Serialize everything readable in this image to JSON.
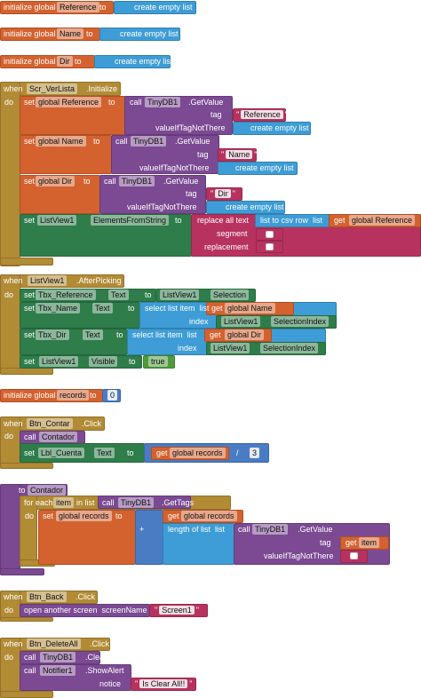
{
  "blocks": [
    [
      "initialize global",
      "Reference",
      "to",
      "create empty list"
    ],
    [
      "initialize global",
      "Name",
      "to",
      "create empty list"
    ],
    [
      "initialize global",
      "Dir",
      "to",
      "create empty list"
    ],
    [
      "when",
      "Scr_VerLista",
      ".Initialize",
      "do",
      "set",
      "global Reference",
      "to",
      "call",
      "TinyDB1",
      ".GetValue",
      "tag",
      "valueIfTagNotThere",
      "Reference",
      "create empty list",
      "set",
      "global Name",
      "to",
      "call",
      "TinyDB1",
      ".GetValue",
      "tag",
      "valueIfTagNotThere",
      "Name",
      "create empty list",
      "set",
      "global Dir",
      "to",
      "call",
      "TinyDB1",
      ".GetValue",
      "tag",
      "valueIfTagNotThere",
      "Dir",
      "create empty list",
      "set",
      "ListView1",
      "ElementsFromString",
      "to",
      "replace all text",
      "segment",
      "replacement",
      "list to csv row  list",
      "get",
      "global Reference"
    ],
    [
      "when",
      "ListView1",
      ".AfterPicking",
      "do",
      "set",
      "Tbx_Reference",
      "Text",
      "to",
      "ListView1",
      "Selection",
      "set",
      "Tbx_Name",
      "Text",
      "to",
      "select list item  list",
      "index",
      "get",
      "global Name",
      "ListView1",
      "SelectionIndex",
      "set",
      "Tbx_Dir",
      "Text",
      "to",
      "select list item  list",
      "index",
      "get",
      "global Dir",
      "ListView1",
      "SelectionIndex",
      "set",
      "ListView1",
      "Visible",
      "to",
      "true"
    ],
    [
      "initialize global",
      "records",
      "to",
      0
    ],
    [
      "when",
      "Btn_Contar",
      ".Click",
      "do",
      "call",
      "Contador",
      "set",
      "Lbl_Cuenta",
      "Text",
      "to",
      "get",
      "global records",
      "/",
      3
    ],
    [
      "to",
      "Contador",
      "for each",
      "item",
      "in list",
      "call",
      "TinyDB1",
      ".GetTags",
      "do",
      "set",
      "global records",
      "to",
      "+",
      "get",
      "global records",
      "length of list  list",
      "call",
      "TinyDB1",
      ".GetValue",
      "tag",
      "get",
      "item",
      "valueIfTagNotThere"
    ],
    [
      "when",
      "Btn_Back",
      ".Click",
      "do",
      "open another screen  screenName",
      "Screen1"
    ],
    [
      "when",
      "Btn_DeleteAll",
      ".Click",
      "do",
      "call",
      "TinyDB1",
      ".ClearAll",
      "call",
      "Notifier1",
      ".ShowAlert",
      "notice",
      "Is Clear All!!"
    ]
  ]
}
